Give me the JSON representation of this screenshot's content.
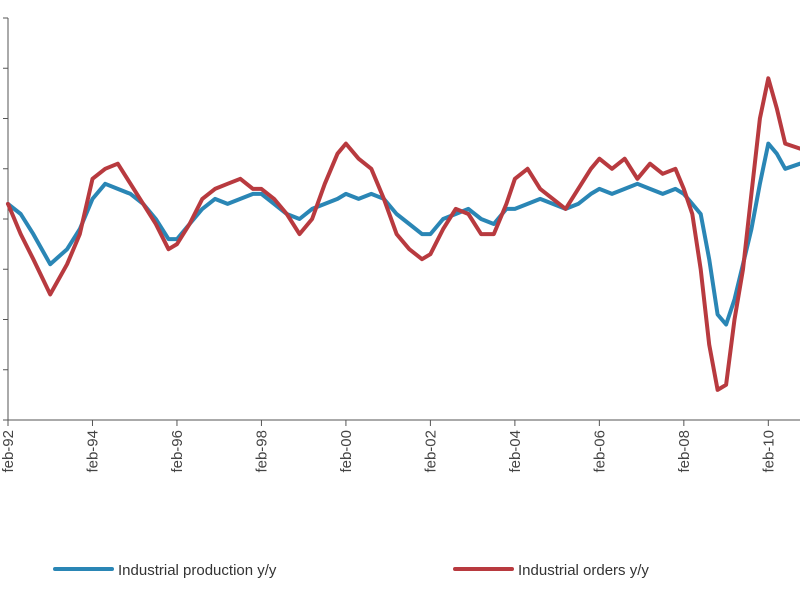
{
  "chart_data": {
    "type": "line",
    "title": "",
    "xlabel": "",
    "ylabel": "",
    "x_ticks": [
      "feb-92",
      "feb-94",
      "feb-96",
      "feb-98",
      "feb-00",
      "feb-02",
      "feb-04",
      "feb-06",
      "feb-08",
      "feb-10"
    ],
    "xlim": [
      1992.0,
      2010.75
    ],
    "ylim": [
      -4.0,
      4.0
    ],
    "y_ticks": [
      -4,
      -3,
      -2,
      -1,
      0,
      1,
      2,
      3,
      4
    ],
    "grid": false,
    "legend": "bottom",
    "series": [
      {
        "name": "Industrial production y/y",
        "color": "#2a86b5",
        "x": [
          1992.0,
          1992.3,
          1992.6,
          1993.0,
          1993.4,
          1993.7,
          1994.0,
          1994.3,
          1994.6,
          1994.9,
          1995.2,
          1995.5,
          1995.8,
          1996.0,
          1996.3,
          1996.6,
          1996.9,
          1997.2,
          1997.5,
          1997.8,
          1998.0,
          1998.3,
          1998.6,
          1998.9,
          1999.2,
          1999.5,
          1999.8,
          2000.0,
          2000.3,
          2000.6,
          2000.9,
          2001.2,
          2001.5,
          2001.8,
          2002.0,
          2002.3,
          2002.6,
          2002.9,
          2003.2,
          2003.5,
          2003.8,
          2004.0,
          2004.3,
          2004.6,
          2004.9,
          2005.2,
          2005.5,
          2005.8,
          2006.0,
          2006.3,
          2006.6,
          2006.9,
          2007.2,
          2007.5,
          2007.8,
          2008.0,
          2008.2,
          2008.4,
          2008.6,
          2008.8,
          2009.0,
          2009.2,
          2009.4,
          2009.6,
          2009.8,
          2010.0,
          2010.2,
          2010.4,
          2010.75
        ],
        "values": [
          0.3,
          0.1,
          -0.3,
          -0.9,
          -0.6,
          -0.2,
          0.4,
          0.7,
          0.6,
          0.5,
          0.3,
          0.0,
          -0.4,
          -0.4,
          -0.1,
          0.2,
          0.4,
          0.3,
          0.4,
          0.5,
          0.5,
          0.3,
          0.1,
          0.0,
          0.2,
          0.3,
          0.4,
          0.5,
          0.4,
          0.5,
          0.4,
          0.1,
          -0.1,
          -0.3,
          -0.3,
          0.0,
          0.1,
          0.2,
          0.0,
          -0.1,
          0.2,
          0.2,
          0.3,
          0.4,
          0.3,
          0.2,
          0.3,
          0.5,
          0.6,
          0.5,
          0.6,
          0.7,
          0.6,
          0.5,
          0.6,
          0.5,
          0.3,
          0.1,
          -0.8,
          -1.9,
          -2.1,
          -1.6,
          -0.9,
          -0.2,
          0.7,
          1.5,
          1.3,
          1.0,
          1.1
        ]
      },
      {
        "name": "Industrial orders y/y",
        "color": "#b83a3f",
        "x": [
          1992.0,
          1992.3,
          1992.6,
          1993.0,
          1993.4,
          1993.7,
          1994.0,
          1994.3,
          1994.6,
          1994.9,
          1995.2,
          1995.5,
          1995.8,
          1996.0,
          1996.3,
          1996.6,
          1996.9,
          1997.2,
          1997.5,
          1997.8,
          1998.0,
          1998.3,
          1998.6,
          1998.9,
          1999.2,
          1999.5,
          1999.8,
          2000.0,
          2000.3,
          2000.6,
          2000.9,
          2001.2,
          2001.5,
          2001.8,
          2002.0,
          2002.3,
          2002.6,
          2002.9,
          2003.2,
          2003.5,
          2003.8,
          2004.0,
          2004.3,
          2004.6,
          2004.9,
          2005.2,
          2005.5,
          2005.8,
          2006.0,
          2006.3,
          2006.6,
          2006.9,
          2007.2,
          2007.5,
          2007.8,
          2008.0,
          2008.2,
          2008.4,
          2008.6,
          2008.8,
          2009.0,
          2009.2,
          2009.4,
          2009.6,
          2009.8,
          2010.0,
          2010.2,
          2010.4,
          2010.75
        ],
        "values": [
          0.3,
          -0.3,
          -0.8,
          -1.5,
          -0.9,
          -0.3,
          0.8,
          1.0,
          1.1,
          0.7,
          0.3,
          -0.1,
          -0.6,
          -0.5,
          -0.1,
          0.4,
          0.6,
          0.7,
          0.8,
          0.6,
          0.6,
          0.4,
          0.1,
          -0.3,
          0.0,
          0.7,
          1.3,
          1.5,
          1.2,
          1.0,
          0.4,
          -0.3,
          -0.6,
          -0.8,
          -0.7,
          -0.2,
          0.2,
          0.1,
          -0.3,
          -0.3,
          0.3,
          0.8,
          1.0,
          0.6,
          0.4,
          0.2,
          0.6,
          1.0,
          1.2,
          1.0,
          1.2,
          0.8,
          1.1,
          0.9,
          1.0,
          0.6,
          0.1,
          -1.0,
          -2.5,
          -3.4,
          -3.3,
          -2.0,
          -1.0,
          0.5,
          2.0,
          2.8,
          2.2,
          1.5,
          1.4
        ]
      }
    ]
  }
}
